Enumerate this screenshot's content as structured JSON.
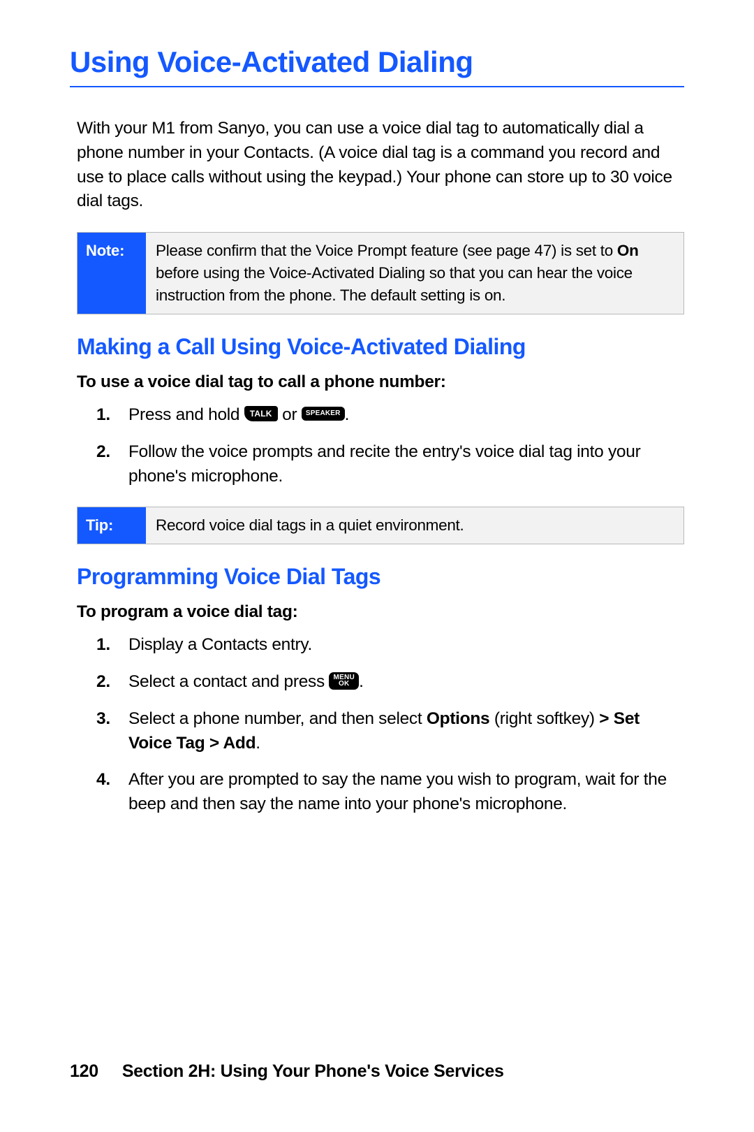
{
  "colors": {
    "accent": "#1458ff",
    "rule": "#1458ff",
    "callout_border": "#b7b9bb",
    "callout_bg": "#f2f2f2",
    "text": "#000000",
    "bg": "#ffffff"
  },
  "h1": "Using Voice-Activated Dialing",
  "intro": "With your M1 from Sanyo, you can use a voice dial tag to automatically dial a phone number in your Contacts. (A voice dial tag is a command you record and use to place calls without using the keypad.) Your phone can store up to 30 voice dial tags.",
  "note": {
    "label": "Note:",
    "body_parts": {
      "before_bold": "Please confirm that the Voice Prompt feature (see page 47) is set to ",
      "bold": "On",
      "after_bold": " before using the Voice-Activated Dialing so that you can hear the voice instruction from the phone. The default setting is on."
    }
  },
  "section1": {
    "title": "Making a Call Using Voice-Activated Dialing",
    "subhead": "To use a voice dial tag to call a phone number:",
    "steps": {
      "s1": {
        "before_key1": "Press and hold ",
        "key1": "TALK",
        "mid": " or ",
        "key2": "SPEAKER",
        "after": "."
      },
      "s2": "Follow the voice prompts and recite the entry's voice dial tag into your phone's microphone."
    }
  },
  "tip": {
    "label": "Tip:",
    "body": "Record voice dial tags in a quiet environment."
  },
  "section2": {
    "title": "Programming Voice Dial Tags",
    "subhead": "To program a voice dial tag:",
    "steps": {
      "s1": "Display a Contacts entry.",
      "s2": {
        "before": "Select a contact and press ",
        "key_top": "MENU",
        "key_bot": "OK",
        "after": "."
      },
      "s3": {
        "before": "Select a phone number, and then select ",
        "b1": "Options",
        "mid": " (right softkey) ",
        "b2": "> Set Voice Tag > Add",
        "after": "."
      },
      "s4": "After you are prompted to say the name you wish to program, wait for the beep and then say the name into your phone's microphone."
    }
  },
  "footer": {
    "page": "120",
    "section": "Section 2H: Using Your Phone's Voice Services"
  }
}
